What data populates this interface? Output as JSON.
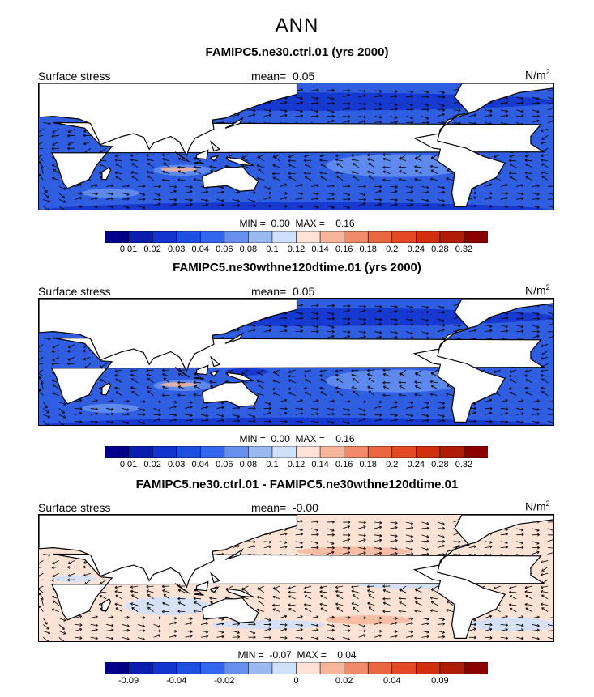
{
  "suptitle": "ANN",
  "panels": [
    {
      "title": "FAMIPC5.ne30.ctrl.01 (yrs 2000)",
      "left_label": "Surface stress",
      "mean_label": "mean=",
      "mean_value": "0.05",
      "units_base": "N/m",
      "units_exp": "2",
      "min_label": "MIN =",
      "min_value": "0.00",
      "max_label": "MAX =",
      "max_value": "0.16"
    },
    {
      "title": "FAMIPC5.ne30wthne120dtime.01 (yrs 2000)",
      "left_label": "Surface stress",
      "mean_label": "mean=",
      "mean_value": "0.05",
      "units_base": "N/m",
      "units_exp": "2",
      "min_label": "MIN =",
      "min_value": "0.00",
      "max_label": "MAX =",
      "max_value": "0.16"
    },
    {
      "title": "FAMIPC5.ne30.ctrl.01 - FAMIPC5.ne30wthne120dtime.01",
      "left_label": "Surface stress",
      "mean_label": "mean=",
      "mean_value": "-0.00",
      "units_base": "N/m",
      "units_exp": "2",
      "min_label": "MIN =",
      "min_value": "-0.07",
      "max_label": "MAX =",
      "max_value": "0.04"
    }
  ],
  "colorbar_abs": {
    "colors": [
      "#00008b",
      "#0a1fb0",
      "#1233cc",
      "#1f4fe0",
      "#3366ee",
      "#6690ee",
      "#9ab8f2",
      "#cfe0fa",
      "#fde3d6",
      "#f7b69b",
      "#f08a68",
      "#ea6640",
      "#e24a26",
      "#d03010",
      "#b01c06",
      "#8b0000"
    ],
    "tick_labels": [
      "0.01",
      "0.02",
      "0.03",
      "0.04",
      "0.06",
      "0.08",
      "0.1",
      "0.12",
      "0.14",
      "0.16",
      "0.18",
      "0.2",
      "0.24",
      "0.28",
      "0.32"
    ]
  },
  "colorbar_diff": {
    "colors": [
      "#00008b",
      "#0a1fb0",
      "#1233cc",
      "#1f4fe0",
      "#3366ee",
      "#6690ee",
      "#9ab8f2",
      "#cfe0fa",
      "#fde3d6",
      "#f7b69b",
      "#f08a68",
      "#ea6640",
      "#e24a26",
      "#d03010",
      "#b01c06",
      "#8b0000"
    ],
    "tick_labels": [
      "-0.09",
      "-0.04",
      "-0.02",
      "0",
      "0.02",
      "0.04",
      "0.09"
    ],
    "tick_boundaries": [
      1,
      3,
      5,
      8,
      10,
      12,
      14
    ]
  },
  "map_colors": {
    "land": "#ffffff",
    "ocean_abs": "#2f5fe0",
    "ocean_abs_dark": "#1233cc",
    "ocean_abs_light": "#6690ee",
    "ocean_abs_strong": "#f7b69b",
    "diff_pos": "#fde3d6",
    "diff_pos_strong": "#f7b69b",
    "diff_neg": "#cfe0fa",
    "diff_neg_strong": "#9ab8f2",
    "diff_zero": "#ffffff"
  }
}
